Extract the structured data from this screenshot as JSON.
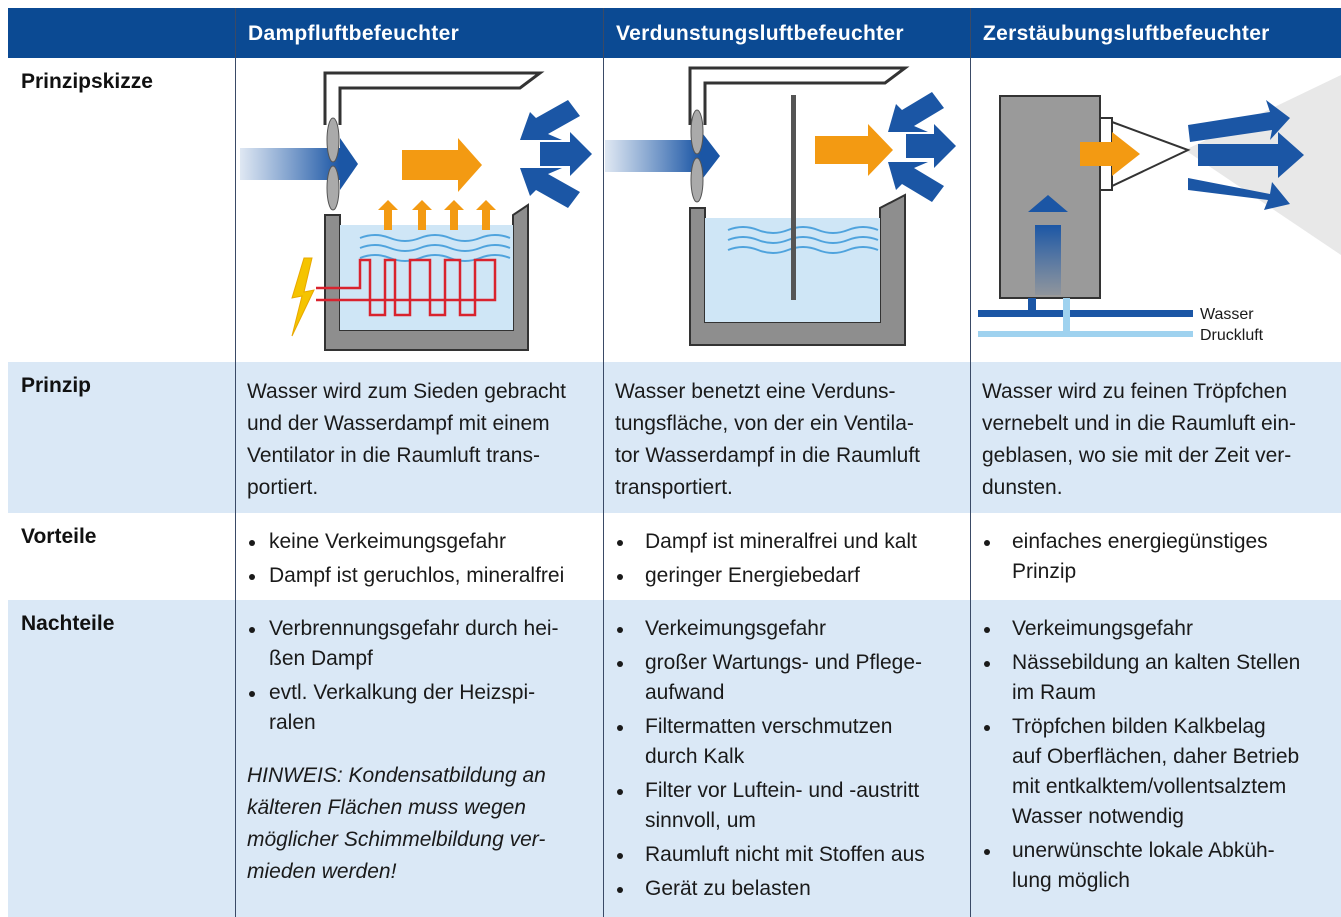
{
  "table": {
    "columns": [
      "Dampfluftbefeuchter",
      "Verdunstungsluftbefeuchter",
      "Zerstäubungsluftbefeuchter"
    ],
    "rows": [
      {
        "label": "Prinzipskizze",
        "sketch_labels": [
          "Wasser",
          "Druckluft"
        ]
      },
      {
        "label": "Prinzip",
        "cells": [
          [
            "Wasser wird zum Sieden gebracht",
            "und der Wasserdampf mit einem",
            "Ventilator in die Raumluft trans-",
            "portiert."
          ],
          [
            "Wasser benetzt eine Verduns-",
            "tungsfläche, von der ein Ventila-",
            "tor Wasserdampf in die Raumluft",
            "transportiert."
          ],
          [
            "Wasser wird zu feinen Tröpfchen",
            "vernebelt und in die Raumluft ein-",
            "geblasen, wo sie mit der Zeit ver-",
            "dunsten."
          ]
        ]
      },
      {
        "label": "Vorteile",
        "cells": [
          {
            "bullets": [
              [
                "keine Verkeimungsgefahr"
              ],
              [
                "Dampf ist geruchlos, mineralfrei"
              ]
            ]
          },
          {
            "bullets": [
              [
                "Dampf ist mineralfrei und kalt"
              ],
              [
                "geringer Energiebedarf"
              ]
            ]
          },
          {
            "bullets": [
              [
                "einfaches energiegünstiges",
                "Prinzip"
              ]
            ]
          }
        ]
      },
      {
        "label": "Nachteile",
        "cells": [
          {
            "bullets": [
              [
                "Verbrennungsgefahr durch hei-",
                "ßen Dampf"
              ],
              [
                "evtl. Verkalkung der Heizspi-",
                "ralen"
              ]
            ],
            "note": [
              "HINWEIS: Kondensatbildung an",
              "kälteren Flächen muss wegen",
              "möglicher Schimmelbildung ver-",
              "mieden werden!"
            ]
          },
          {
            "bullets": [
              [
                "Verkeimungsgefahr"
              ],
              [
                "großer Wartungs- und Pflege-",
                "aufwand"
              ],
              [
                "Filtermatten verschmutzen",
                "durch Kalk"
              ],
              [
                "Filter vor Luftein- und -austritt",
                "sinnvoll, um"
              ],
              [
                "Raumluft nicht mit Stoffen aus"
              ],
              [
                "Gerät zu belasten"
              ]
            ]
          },
          {
            "bullets": [
              [
                "Verkeimungsgefahr"
              ],
              [
                "Nässebildung an kalten Stellen",
                "im Raum"
              ],
              [
                "Tröpfchen bilden Kalkbelag",
                "auf Oberflächen, daher Betrieb",
                "mit entkalktem/vollentsalztem",
                "Wasser notwendig"
              ],
              [
                "unerwünschte lokale Abküh-",
                "lung möglich"
              ]
            ]
          }
        ]
      }
    ]
  }
}
